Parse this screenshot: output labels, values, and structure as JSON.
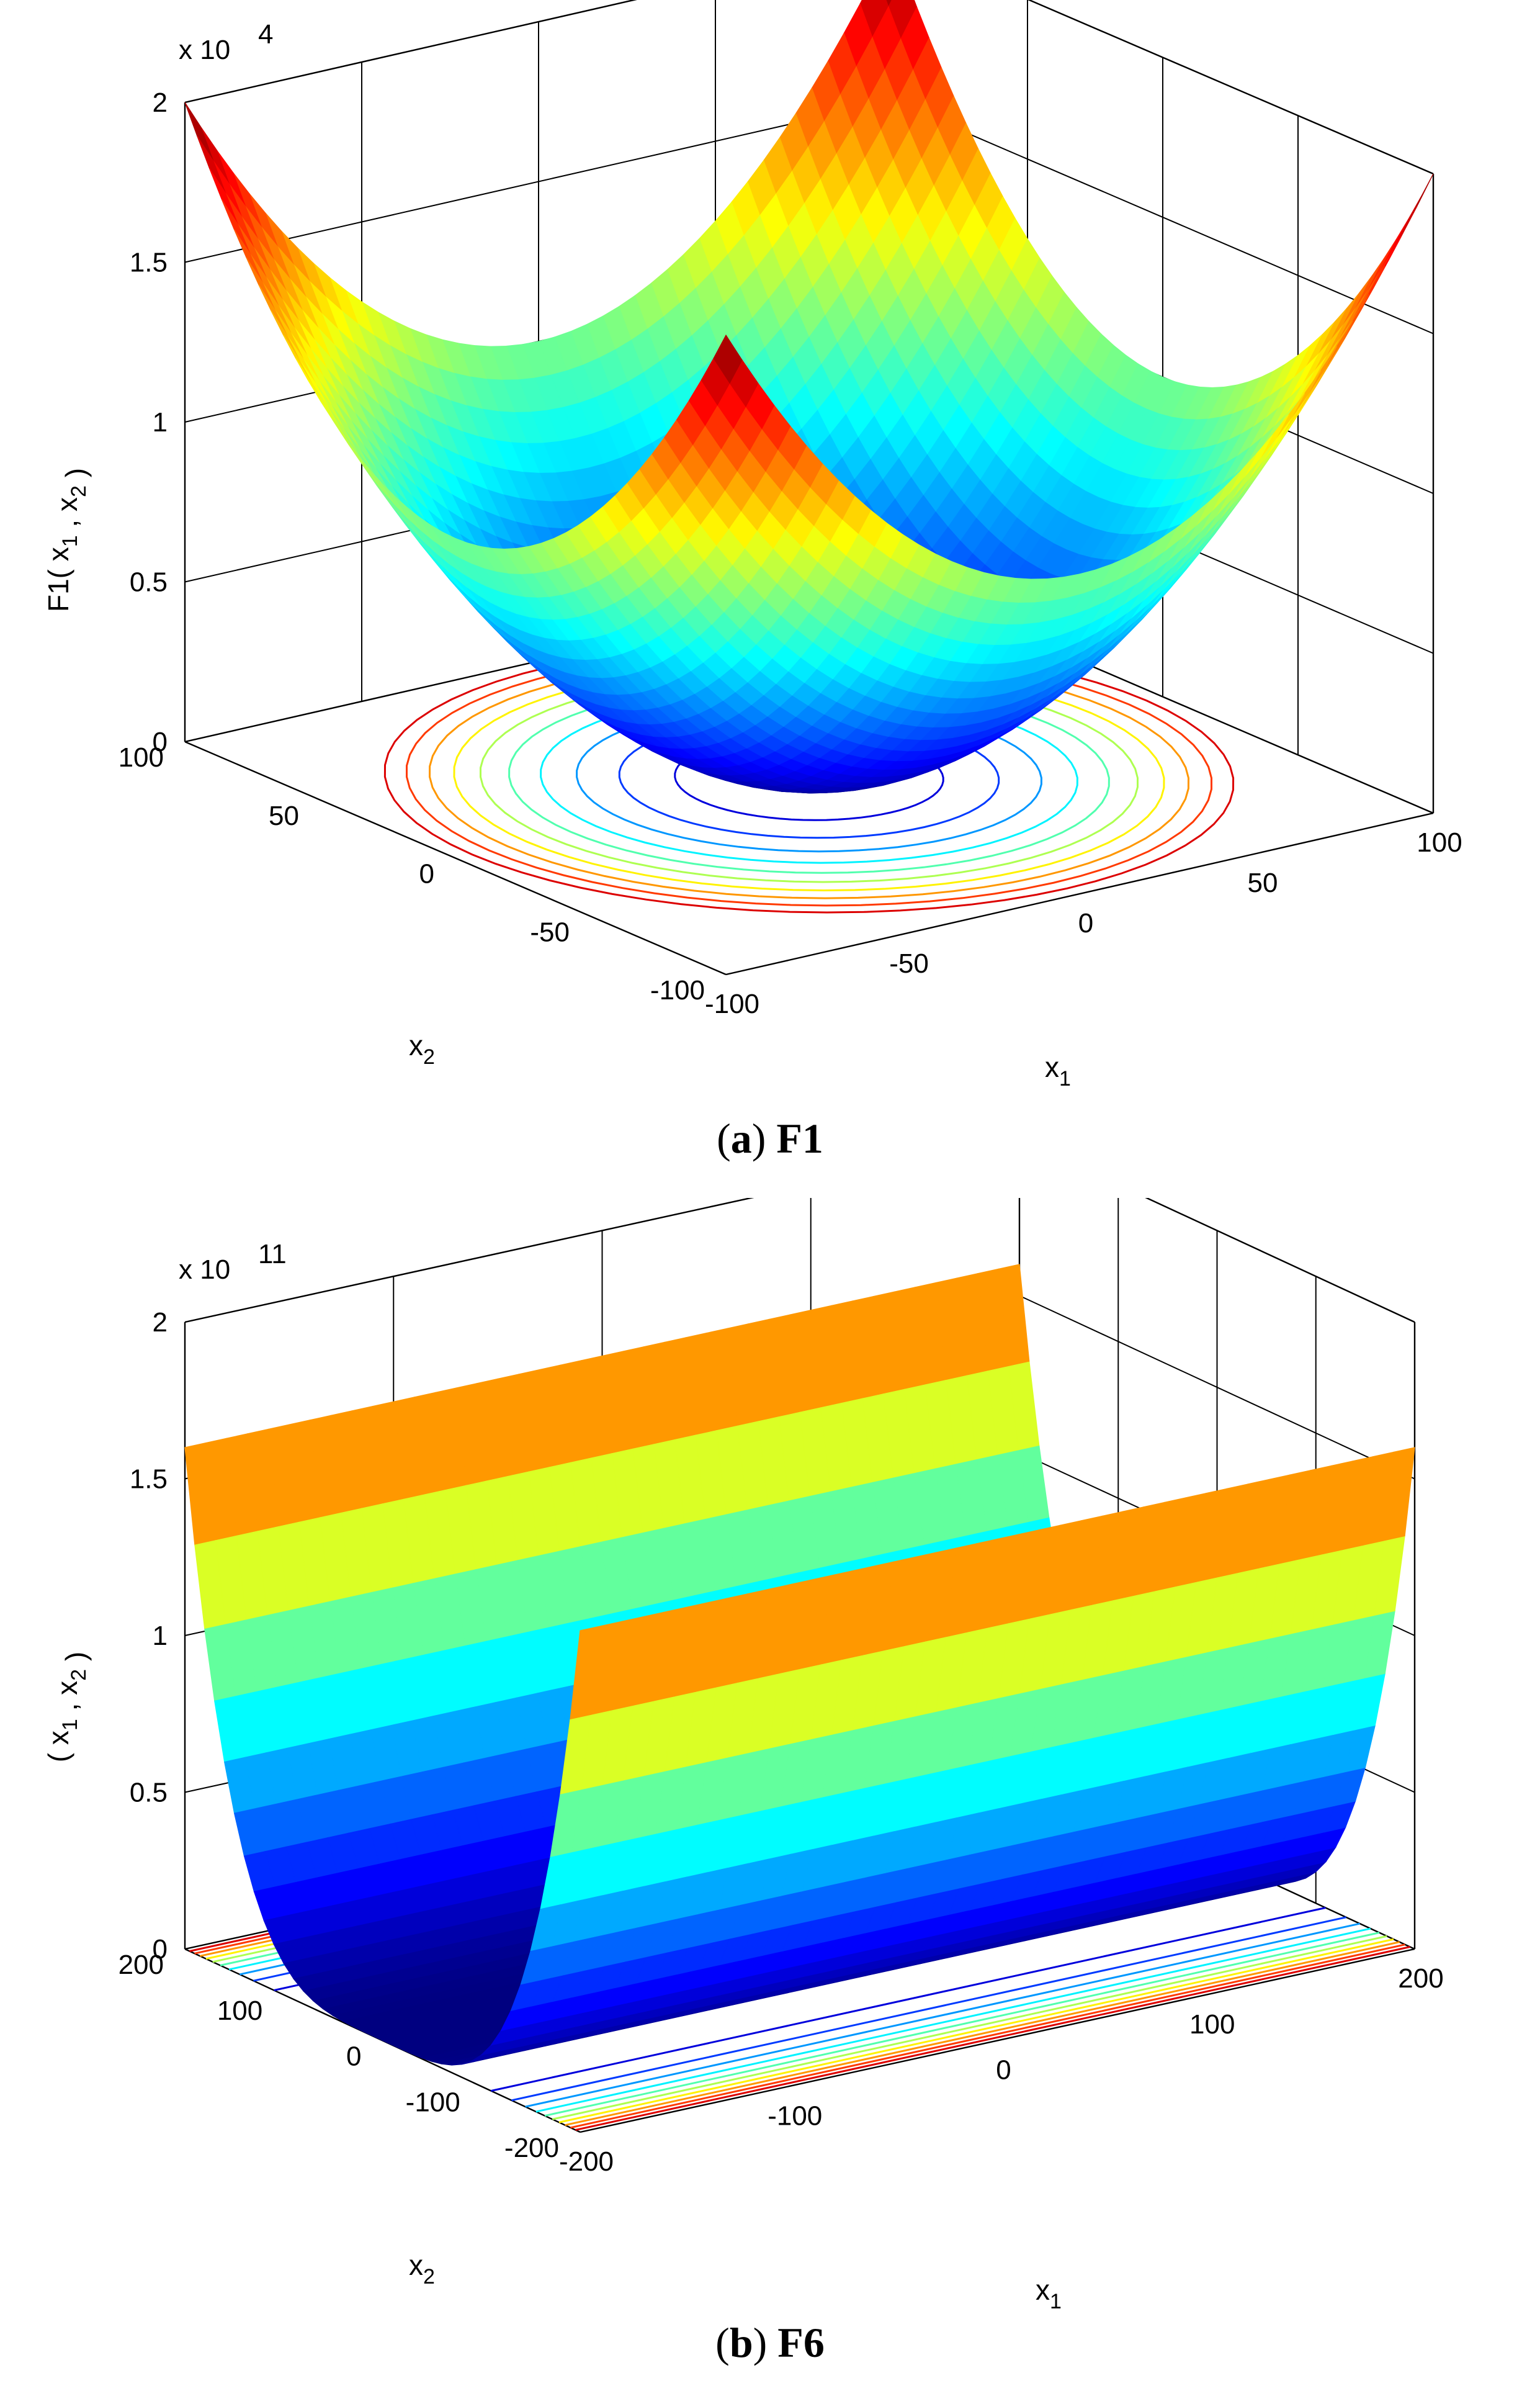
{
  "figure": {
    "panel_a": {
      "caption_letter": "a",
      "caption_name": "F1"
    },
    "panel_b": {
      "caption_letter": "b",
      "caption_name": "F6"
    }
  },
  "chart_data": [
    {
      "type": "surface",
      "function": "F1",
      "formula_shape": "sum of squares (paraboloid)",
      "zlabel": "F1( x1 , x2 )",
      "xlabel": "x1",
      "ylabel": "x2",
      "z_multiplier": "x 10",
      "z_exponent": "4",
      "x_ticks": [
        "-100",
        "-50",
        "0",
        "50",
        "100"
      ],
      "y_ticks": [
        "-100",
        "-50",
        "0",
        "50",
        "100"
      ],
      "z_ticks": [
        "0",
        "0.5",
        "1",
        "1.5",
        "2"
      ],
      "xlim": [
        -100,
        100
      ],
      "ylim": [
        -100,
        100
      ],
      "zlim": [
        0,
        20000
      ],
      "surface_samples": {
        "x1": [
          -100,
          -50,
          0,
          50,
          100
        ],
        "x2": [
          -100,
          -50,
          0,
          50,
          100
        ],
        "z": [
          [
            20000,
            12500,
            10000,
            12500,
            20000
          ],
          [
            12500,
            5000,
            2500,
            5000,
            12500
          ],
          [
            10000,
            2500,
            0,
            2500,
            10000
          ],
          [
            12500,
            5000,
            2500,
            5000,
            12500
          ],
          [
            20000,
            12500,
            10000,
            12500,
            20000
          ]
        ]
      },
      "contour_levels": 10,
      "colormap": "jet",
      "grid": true
    },
    {
      "type": "surface",
      "function": "F6",
      "formula_shape": "quartic valley along x2 (constant in x1)",
      "zlabel": "( x1 , x2 )",
      "xlabel": "x1",
      "ylabel": "x2",
      "z_multiplier": "x 10",
      "z_exponent": "11",
      "x_ticks": [
        "-200",
        "-100",
        "0",
        "100",
        "200"
      ],
      "y_ticks": [
        "-200",
        "-100",
        "0",
        "100",
        "200"
      ],
      "z_ticks": [
        "0",
        "0.5",
        "1",
        "1.5",
        "2"
      ],
      "xlim": [
        -200,
        200
      ],
      "ylim": [
        -200,
        200
      ],
      "zlim": [
        0,
        200000000000
      ],
      "surface_samples": {
        "x2": [
          -200,
          -100,
          0,
          100,
          200
        ],
        "z_along_x2": [
          160000000000,
          10000000000,
          0,
          10000000000,
          160000000000
        ]
      },
      "contour_levels": 10,
      "colormap": "jet",
      "grid": true
    }
  ]
}
